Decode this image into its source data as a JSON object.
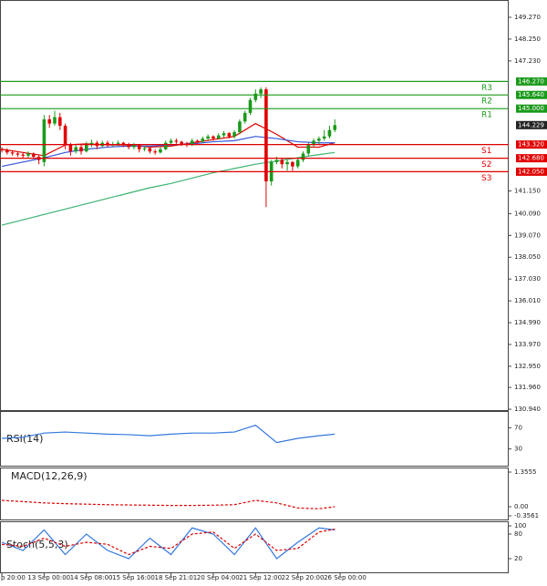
{
  "chart_data": {
    "type": "candlestick",
    "xlim": [
      -0.35,
      95.9
    ],
    "ylim": [
      130.9,
      150.08
    ],
    "yticks": [
      {
        "value": 149.27,
        "label": "149.270"
      },
      {
        "value": 148.25,
        "label": "148.250"
      },
      {
        "value": 147.23,
        "label": "147.230"
      },
      {
        "value": 141.15,
        "label": "141.150"
      },
      {
        "value": 140.09,
        "label": "140.090"
      },
      {
        "value": 139.07,
        "label": "139.070"
      },
      {
        "value": 138.05,
        "label": "138.050"
      },
      {
        "value": 137.03,
        "label": "137.030"
      },
      {
        "value": 136.01,
        "label": "136.010"
      },
      {
        "value": 134.99,
        "label": "134.990"
      },
      {
        "value": 133.97,
        "label": "133.970"
      },
      {
        "value": 132.95,
        "label": "132.950"
      },
      {
        "value": 131.96,
        "label": "131.960"
      },
      {
        "value": 130.94,
        "label": "130.940"
      }
    ],
    "open": [
      143.1,
      143.05,
      142.95,
      142.9,
      142.85,
      142.8,
      142.9,
      142.75,
      142.5,
      144.5,
      144.3,
      144.6,
      144.2,
      143.3,
      143.0,
      143.2,
      143.0,
      143.3,
      143.4,
      143.25,
      143.4,
      143.3,
      143.35,
      143.4,
      143.3,
      143.2,
      143.3,
      143.1,
      143.15,
      143.0,
      142.95,
      143.1,
      143.4,
      143.5,
      143.45,
      143.35,
      143.3,
      143.5,
      143.45,
      143.6,
      143.7,
      143.6,
      143.75,
      143.85,
      143.7,
      143.9,
      144.4,
      144.8,
      145.4,
      145.7,
      145.9,
      141.6,
      142.5,
      142.6,
      142.4,
      142.5,
      142.3,
      142.6,
      142.9,
      143.3,
      143.5,
      143.6,
      143.7,
      144.0
    ],
    "high": [
      143.2,
      143.15,
      143.05,
      143.0,
      142.95,
      143.0,
      142.95,
      142.85,
      144.7,
      144.7,
      144.9,
      144.8,
      144.3,
      143.4,
      143.35,
      143.3,
      143.45,
      143.55,
      143.5,
      143.5,
      143.5,
      143.45,
      143.5,
      143.45,
      143.4,
      143.4,
      143.35,
      143.25,
      143.2,
      143.1,
      143.2,
      143.5,
      143.6,
      143.6,
      143.5,
      143.45,
      143.6,
      143.55,
      143.7,
      143.8,
      143.75,
      143.85,
      143.95,
      143.9,
      144.0,
      144.5,
      144.9,
      145.5,
      145.9,
      146.0,
      146.0,
      142.6,
      142.75,
      142.7,
      142.6,
      142.55,
      142.7,
      143.0,
      143.4,
      143.6,
      143.7,
      144.0,
      144.2,
      144.5
    ],
    "low": [
      142.95,
      142.85,
      142.8,
      142.75,
      142.7,
      142.7,
      142.65,
      142.4,
      142.3,
      144.1,
      144.2,
      144.0,
      143.1,
      142.8,
      142.9,
      142.85,
      142.95,
      143.2,
      143.1,
      143.2,
      143.2,
      143.2,
      143.25,
      143.2,
      143.1,
      143.1,
      142.95,
      143.0,
      142.9,
      142.85,
      142.9,
      143.05,
      143.3,
      143.35,
      143.25,
      143.2,
      143.25,
      143.35,
      143.4,
      143.5,
      143.5,
      143.55,
      143.65,
      143.6,
      143.6,
      143.8,
      144.3,
      144.7,
      145.3,
      145.5,
      140.4,
      141.4,
      142.4,
      142.2,
      142.1,
      142.1,
      142.2,
      142.5,
      142.8,
      143.2,
      143.3,
      143.5,
      143.6,
      143.9
    ],
    "close": [
      143.05,
      142.95,
      142.9,
      142.85,
      142.8,
      142.9,
      142.75,
      142.6,
      144.5,
      144.3,
      144.6,
      144.2,
      143.3,
      143.0,
      143.2,
      143.0,
      143.3,
      143.4,
      143.25,
      143.4,
      143.3,
      143.35,
      143.4,
      143.3,
      143.2,
      143.3,
      143.1,
      143.15,
      143.0,
      142.95,
      143.1,
      143.4,
      143.5,
      143.45,
      143.35,
      143.3,
      143.5,
      143.45,
      143.6,
      143.7,
      143.6,
      143.75,
      143.85,
      143.7,
      143.9,
      144.4,
      144.8,
      145.4,
      145.7,
      145.9,
      141.6,
      142.5,
      142.6,
      142.4,
      142.5,
      142.3,
      142.6,
      142.9,
      143.3,
      143.5,
      143.6,
      143.7,
      144.0,
      144.229
    ],
    "up_color": "#1a9a1a",
    "down_color": "#e00000",
    "levels": {
      "names": [
        "R3",
        "R2",
        "R1",
        "S1",
        "S2",
        "S3"
      ],
      "values": [
        146.27,
        145.64,
        145.0,
        143.32,
        142.68,
        142.05
      ],
      "value_labels": [
        "146.270",
        "145.640",
        "145.000",
        "143.320",
        "142.680",
        "142.050"
      ],
      "colors": [
        "#1a9a1a",
        "#1a9a1a",
        "#1a9a1a",
        "#e00000",
        "#e00000",
        "#e00000"
      ]
    },
    "ma_index": [
      0,
      4,
      8,
      12,
      16,
      20,
      24,
      28,
      32,
      36,
      40,
      44,
      48,
      52,
      56,
      60,
      63
    ],
    "series": [
      {
        "color": "#e00000",
        "values": [
          143.1,
          142.95,
          142.8,
          143.3,
          143.35,
          143.3,
          143.3,
          143.2,
          143.25,
          143.4,
          143.55,
          143.7,
          144.3,
          143.8,
          143.2,
          143.2,
          143.4
        ]
      },
      {
        "color": "#3355dd",
        "values": [
          142.3,
          142.5,
          142.7,
          142.95,
          143.1,
          143.2,
          143.25,
          143.25,
          143.3,
          143.35,
          143.45,
          143.5,
          143.7,
          143.6,
          143.45,
          143.4,
          143.4
        ]
      },
      {
        "color": "#3cb371",
        "values": [
          139.55,
          139.8,
          140.05,
          140.3,
          140.55,
          140.8,
          141.05,
          141.3,
          141.5,
          141.75,
          142.0,
          142.2,
          142.4,
          142.55,
          142.7,
          142.85,
          142.95
        ]
      }
    ],
    "x_labels": {
      "index": [
        0,
        8,
        16,
        24,
        32,
        40,
        48,
        56,
        64
      ],
      "labels": [
        "p 20:00",
        "13 Sep 00:00",
        "14 Sep 08:00",
        "15 Sep 16:00",
        "18 Sep 21:01",
        "20 Sep 04:00",
        "21 Sep 12:00",
        "22 Sep 20:00",
        "26 Sep 00:00"
      ]
    },
    "rsi": {
      "title": "RSI(14)",
      "ylim": [
        0,
        100
      ],
      "yticks": [
        70,
        30
      ],
      "color": "#3377dd",
      "values": [
        50,
        52,
        60,
        62,
        60,
        58,
        57,
        55,
        58,
        60,
        60,
        62,
        75,
        42,
        50,
        55,
        58
      ]
    },
    "macd": {
      "title": "MACD(12,26,9)",
      "ylim": [
        -0.3561,
        1.3555
      ],
      "yticks": [
        1.3555,
        {
          "value": 0,
          "label": "0.00"
        },
        -0.3561
      ],
      "color": "#e00000",
      "values": [
        0.25,
        0.2,
        0.15,
        0.12,
        0.1,
        0.08,
        0.07,
        0.06,
        0.05,
        0.05,
        0.06,
        0.08,
        0.25,
        0.15,
        -0.05,
        -0.08,
        0.0
      ]
    },
    "stoch": {
      "title": "Stoch(5,5,3)",
      "ylim": [
        0,
        100
      ],
      "yticks": [
        100,
        80,
        20
      ],
      "series": [
        {
          "color": "#3377dd",
          "values": [
            60,
            40,
            90,
            30,
            80,
            40,
            20,
            70,
            30,
            95,
            80,
            30,
            95,
            20,
            60,
            95,
            90
          ]
        },
        {
          "color": "#e00000",
          "values": [
            55,
            50,
            70,
            50,
            60,
            55,
            30,
            50,
            45,
            80,
            85,
            45,
            80,
            40,
            45,
            85,
            92
          ]
        }
      ]
    }
  }
}
